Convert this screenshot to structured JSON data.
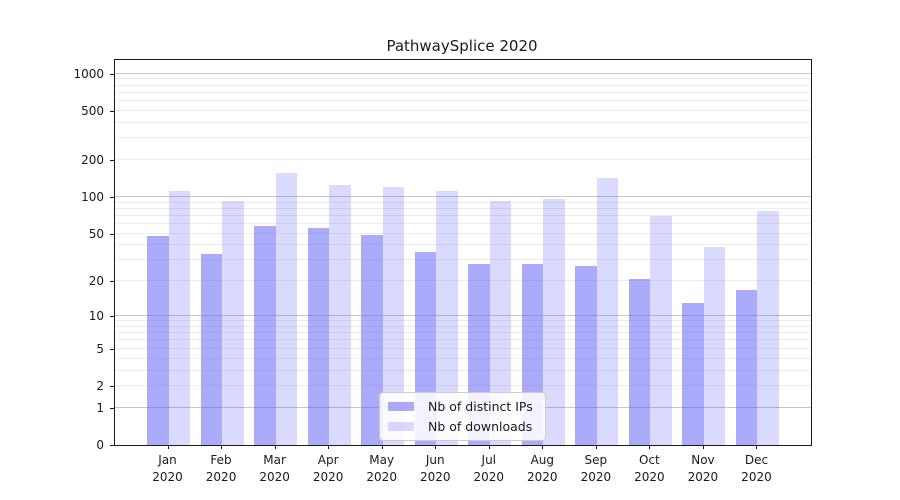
{
  "chart_data": {
    "type": "bar",
    "title": "PathwaySplice 2020",
    "year": "2020",
    "categories": [
      "Jan",
      "Feb",
      "Mar",
      "Apr",
      "May",
      "Jun",
      "Jul",
      "Aug",
      "Sep",
      "Oct",
      "Nov",
      "Dec"
    ],
    "series": [
      {
        "name": "Nb of distinct IPs",
        "color": "rgba(102,102,250,0.55)",
        "values": [
          48,
          34,
          58,
          56,
          49,
          35,
          28,
          28,
          27,
          21,
          13,
          17
        ]
      },
      {
        "name": "Nb of downloads",
        "color": "rgba(102,102,250,0.24)",
        "values": [
          112,
          93,
          158,
          126,
          121,
          111,
          93,
          96,
          144,
          70,
          39,
          77
        ]
      }
    ],
    "yscale": "log1p",
    "ylim": [
      0,
      1290
    ],
    "yticks": [
      0,
      1,
      2,
      5,
      10,
      20,
      50,
      100,
      200,
      500,
      1000
    ],
    "grid": {
      "major": [
        1,
        10,
        100,
        1000
      ],
      "minor": [
        2,
        3,
        4,
        5,
        6,
        7,
        8,
        9,
        20,
        30,
        40,
        50,
        60,
        70,
        80,
        90,
        200,
        300,
        400,
        500,
        600,
        700,
        800,
        900
      ],
      "major_color": "#c6c6c6",
      "minor_color": "#ececec"
    },
    "legend_position": "inside-bottom-center"
  }
}
